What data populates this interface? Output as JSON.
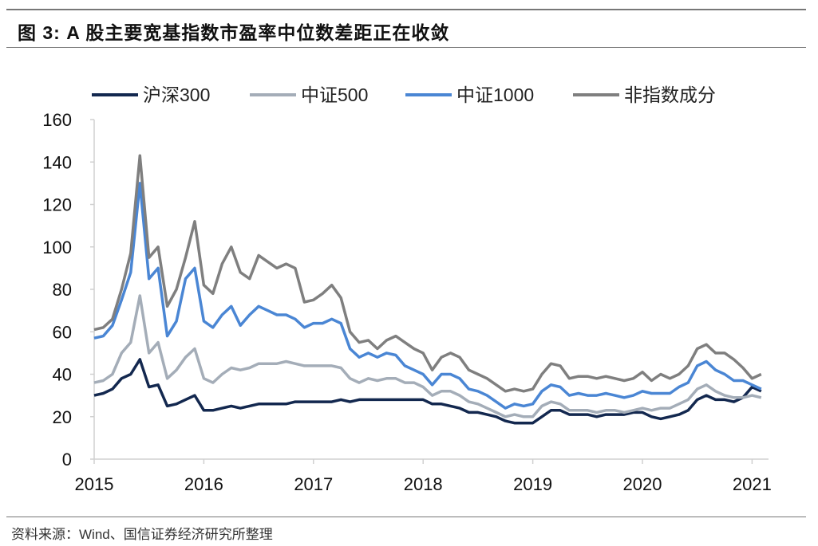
{
  "title": "图 3:  A 股主要宽基指数市盈率中位数差距正在收敛",
  "source": "资料来源：Wind、国信证券经济研究所整理",
  "chart_data": {
    "type": "line",
    "title": "图 3:  A 股主要宽基指数市盈率中位数差距正在收敛",
    "xlabel": "",
    "ylabel": "",
    "ylim": [
      0,
      160
    ],
    "yticks": [
      "0",
      "20",
      "40",
      "60",
      "80",
      "100",
      "120",
      "140",
      "160"
    ],
    "xticks": [
      "2015",
      "2016",
      "2017",
      "2018",
      "2019",
      "2020",
      "2021"
    ],
    "grid": false,
    "legend": "top",
    "x": [
      "2015-01",
      "2015-02",
      "2015-03",
      "2015-04",
      "2015-05",
      "2015-06",
      "2015-07",
      "2015-08",
      "2015-09",
      "2015-10",
      "2015-11",
      "2015-12",
      "2016-01",
      "2016-02",
      "2016-03",
      "2016-04",
      "2016-05",
      "2016-06",
      "2016-07",
      "2016-08",
      "2016-09",
      "2016-10",
      "2016-11",
      "2016-12",
      "2017-01",
      "2017-02",
      "2017-03",
      "2017-04",
      "2017-05",
      "2017-06",
      "2017-07",
      "2017-08",
      "2017-09",
      "2017-10",
      "2017-11",
      "2017-12",
      "2018-01",
      "2018-02",
      "2018-03",
      "2018-04",
      "2018-05",
      "2018-06",
      "2018-07",
      "2018-08",
      "2018-09",
      "2018-10",
      "2018-11",
      "2018-12",
      "2019-01",
      "2019-02",
      "2019-03",
      "2019-04",
      "2019-05",
      "2019-06",
      "2019-07",
      "2019-08",
      "2019-09",
      "2019-10",
      "2019-11",
      "2019-12",
      "2020-01",
      "2020-02",
      "2020-03",
      "2020-04",
      "2020-05",
      "2020-06",
      "2020-07",
      "2020-08",
      "2020-09",
      "2020-10",
      "2020-11",
      "2020-12",
      "2021-01",
      "2021-02"
    ],
    "series": [
      {
        "name": "沪深300",
        "color": "#13284f",
        "values": [
          30,
          31,
          33,
          38,
          40,
          47,
          34,
          35,
          25,
          26,
          28,
          30,
          23,
          23,
          24,
          25,
          24,
          25,
          26,
          26,
          26,
          26,
          27,
          27,
          27,
          27,
          27,
          28,
          27,
          28,
          28,
          28,
          28,
          28,
          28,
          28,
          28,
          26,
          26,
          25,
          24,
          22,
          22,
          21,
          20,
          18,
          17,
          17,
          17,
          20,
          23,
          23,
          21,
          21,
          21,
          20,
          21,
          21,
          21,
          22,
          22,
          20,
          19,
          20,
          21,
          23,
          28,
          30,
          28,
          28,
          27,
          29,
          34,
          32
        ]
      },
      {
        "name": "中证500",
        "color": "#a4adb8",
        "values": [
          36,
          37,
          40,
          50,
          55,
          77,
          50,
          55,
          38,
          42,
          48,
          52,
          38,
          36,
          40,
          43,
          42,
          43,
          45,
          45,
          45,
          46,
          45,
          44,
          44,
          44,
          44,
          43,
          38,
          36,
          38,
          37,
          38,
          38,
          36,
          36,
          34,
          30,
          32,
          32,
          30,
          27,
          26,
          24,
          22,
          20,
          21,
          20,
          20,
          25,
          27,
          26,
          23,
          23,
          23,
          22,
          23,
          23,
          22,
          23,
          24,
          23,
          24,
          24,
          26,
          28,
          33,
          35,
          32,
          30,
          29,
          29,
          30,
          29
        ]
      },
      {
        "name": "中证1000",
        "color": "#4a86d4",
        "values": [
          57,
          58,
          63,
          75,
          88,
          130,
          85,
          90,
          58,
          65,
          85,
          90,
          65,
          62,
          68,
          72,
          63,
          68,
          72,
          70,
          68,
          68,
          66,
          62,
          64,
          64,
          66,
          64,
          52,
          48,
          50,
          48,
          50,
          49,
          44,
          42,
          40,
          35,
          40,
          40,
          38,
          33,
          32,
          30,
          27,
          24,
          26,
          25,
          26,
          32,
          35,
          34,
          30,
          31,
          30,
          30,
          31,
          30,
          29,
          30,
          32,
          31,
          31,
          31,
          34,
          36,
          44,
          46,
          42,
          40,
          37,
          37,
          35,
          33
        ]
      },
      {
        "name": "非指数成分",
        "color": "#7f7f7f",
        "values": [
          61,
          62,
          66,
          80,
          97,
          143,
          95,
          100,
          72,
          80,
          95,
          112,
          82,
          78,
          92,
          100,
          88,
          85,
          96,
          93,
          90,
          92,
          90,
          74,
          75,
          78,
          82,
          76,
          60,
          55,
          56,
          52,
          56,
          58,
          55,
          52,
          50,
          42,
          48,
          50,
          48,
          42,
          40,
          38,
          35,
          32,
          33,
          32,
          33,
          40,
          45,
          44,
          38,
          39,
          39,
          38,
          39,
          38,
          37,
          38,
          41,
          37,
          40,
          38,
          40,
          44,
          52,
          54,
          50,
          50,
          47,
          43,
          38,
          40
        ]
      }
    ]
  }
}
